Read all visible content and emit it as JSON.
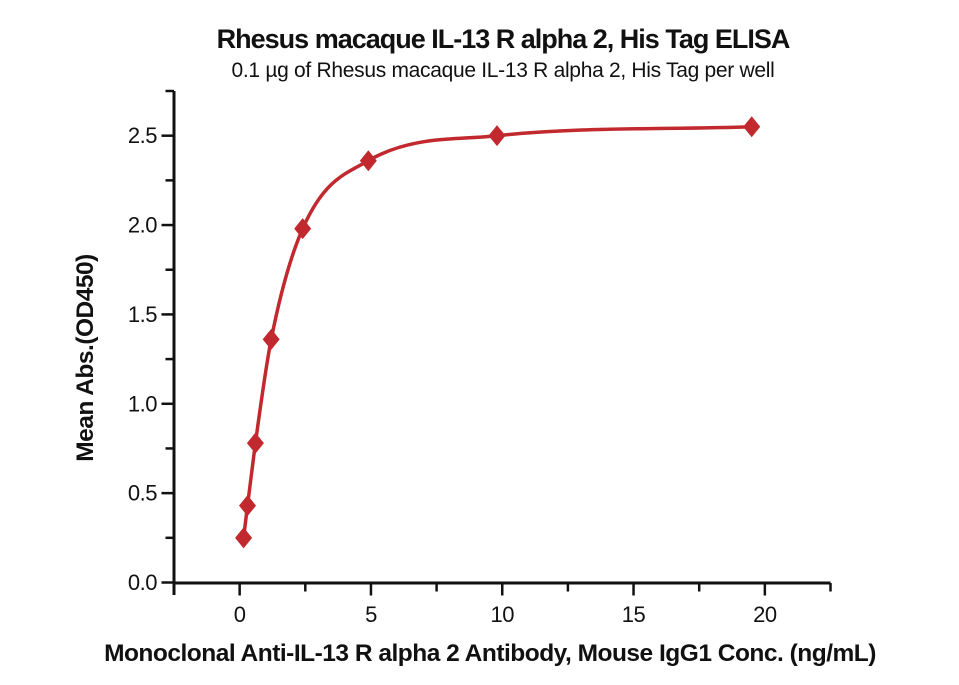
{
  "chart": {
    "title": "Rhesus macaque IL-13 R alpha 2, His Tag ELISA",
    "subtitle": "0.1 µg of Rhesus macaque IL-13 R alpha 2, His Tag per well",
    "xlabel": "Monoclonal Anti-IL-13 R alpha 2 Antibody, Mouse IgG1 Conc. (ng/mL)",
    "ylabel": "Mean Abs.(OD450)"
  },
  "chart_data": {
    "type": "scatter",
    "title": "Rhesus macaque IL-13 R alpha 2, His Tag ELISA",
    "subtitle": "0.1 µg of Rhesus macaque IL-13 R alpha 2, His Tag per well",
    "xlabel": "Monoclonal Anti-IL-13 R alpha 2 Antibody, Mouse IgG1 Conc. (ng/mL)",
    "ylabel": "Mean Abs.(OD450)",
    "x": [
      0.15,
      0.3,
      0.6,
      1.2,
      2.4,
      4.9,
      9.8,
      19.5
    ],
    "y": [
      0.25,
      0.43,
      0.78,
      1.36,
      1.98,
      2.36,
      2.5,
      2.55
    ],
    "xlim": [
      -2.5,
      22.5
    ],
    "ylim": [
      0,
      2.75
    ],
    "x_ticks": {
      "major": [
        0,
        5,
        10,
        15,
        20
      ],
      "labels": [
        "0",
        "5",
        "10",
        "15",
        "20"
      ],
      "minor": [
        -2.5,
        2.5,
        7.5,
        12.5,
        17.5,
        22.5
      ]
    },
    "y_ticks": {
      "major": [
        0,
        0.5,
        1.0,
        1.5,
        2.0,
        2.5
      ],
      "labels": [
        "0.0",
        "0.5",
        "1.0",
        "1.5",
        "2.0",
        "2.5"
      ],
      "minor": [
        0.25,
        0.75,
        1.25,
        1.75,
        2.25,
        2.75
      ]
    },
    "grid": false,
    "legend": "none",
    "marker": "diamond",
    "line": "smooth sigmoidal fit through points",
    "colors": {
      "series": "#c1292e",
      "axis": "#111111",
      "text": "#111111"
    }
  }
}
